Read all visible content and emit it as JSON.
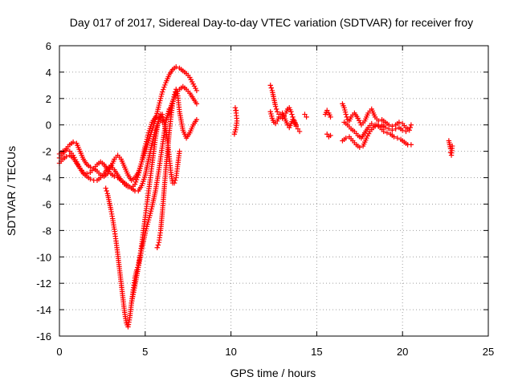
{
  "chart_data": {
    "type": "scatter",
    "title": "Day 017 of 2017, Sidereal Day-to-day VTEC variation (SDTVAR) for receiver froy",
    "xlabel": "GPS time / hours",
    "ylabel": "SDTVAR / TECUs",
    "xlim": [
      0,
      25
    ],
    "ylim": [
      -16,
      6
    ],
    "xticks": [
      0,
      5,
      10,
      15,
      20,
      25
    ],
    "yticks": [
      -16,
      -14,
      -12,
      -10,
      -8,
      -6,
      -4,
      -2,
      0,
      2,
      4,
      6
    ],
    "grid": true,
    "marker": "plus",
    "color": "#ff0000",
    "series": [
      {
        "x": [
          0.0,
          0.2,
          0.4,
          0.6,
          0.8,
          1.0,
          1.2,
          1.4,
          1.6,
          1.8,
          2.0,
          2.2,
          2.4,
          2.6,
          2.8,
          3.0,
          3.2,
          3.4,
          3.6,
          3.8,
          4.0,
          4.2,
          4.4,
          4.6,
          4.8,
          5.0,
          5.2,
          5.4,
          5.6,
          5.8,
          6.0,
          6.2,
          6.4,
          6.6,
          6.8,
          7.0,
          7.2,
          7.4,
          7.6,
          7.8,
          8.0
        ],
        "y": [
          -2.5,
          -2.2,
          -1.8,
          -1.5,
          -1.3,
          -1.4,
          -2.0,
          -2.6,
          -3.0,
          -3.2,
          -3.3,
          -3.5,
          -3.8,
          -3.9,
          -3.7,
          -3.2,
          -2.6,
          -2.3,
          -2.6,
          -3.2,
          -3.8,
          -4.2,
          -4.0,
          -3.6,
          -2.8,
          -2.0,
          -1.2,
          -0.4,
          0.4,
          1.5,
          2.5,
          3.2,
          3.8,
          4.2,
          4.4,
          4.3,
          4.1,
          3.9,
          3.6,
          3.1,
          2.6
        ]
      },
      {
        "x": [
          0.0,
          0.2,
          0.4,
          0.6,
          0.8,
          1.0,
          1.2,
          1.4,
          1.6,
          1.8,
          2.0,
          2.2,
          2.4,
          2.6,
          2.8,
          3.0,
          3.2,
          3.4,
          3.6,
          3.8,
          4.0,
          4.2,
          4.4,
          4.6,
          4.8,
          5.0,
          5.2,
          5.4,
          5.6,
          5.8,
          6.0,
          6.2,
          6.4,
          6.6,
          6.8,
          7.0,
          7.2,
          7.4,
          7.6,
          7.8,
          8.0
        ],
        "y": [
          -2.2,
          -2.0,
          -1.9,
          -2.0,
          -2.3,
          -2.8,
          -3.3,
          -3.7,
          -3.9,
          -4.1,
          -4.2,
          -4.2,
          -4.0,
          -3.7,
          -3.3,
          -3.1,
          -3.4,
          -3.8,
          -4.2,
          -4.5,
          -4.7,
          -4.8,
          -4.5,
          -3.8,
          -2.8,
          -1.6,
          -0.6,
          0.2,
          0.6,
          0.5,
          0.2,
          0.4,
          1.0,
          1.8,
          2.4,
          2.7,
          2.9,
          2.7,
          2.4,
          2.0,
          1.6
        ]
      },
      {
        "x": [
          0.0,
          0.2,
          0.4,
          0.6,
          0.8,
          1.0,
          1.2,
          1.4,
          1.6,
          1.8,
          2.0,
          2.2,
          2.4,
          2.6,
          2.8,
          3.0,
          3.2,
          3.4,
          3.6,
          3.8,
          4.0,
          4.2,
          4.4,
          4.6,
          4.8,
          5.0,
          5.2,
          5.4,
          5.6,
          5.8,
          6.0
        ],
        "y": [
          -2.9,
          -2.6,
          -2.4,
          -2.3,
          -2.5,
          -2.9,
          -3.3,
          -3.6,
          -3.7,
          -3.6,
          -3.3,
          -3.0,
          -2.8,
          -3.0,
          -3.4,
          -3.7,
          -3.9,
          -4.0,
          -4.2,
          -4.4,
          -4.6,
          -4.8,
          -5.0,
          -5.0,
          -4.6,
          -3.8,
          -2.6,
          -1.4,
          -0.4,
          0.4,
          0.8
        ]
      },
      {
        "x": [
          2.7,
          2.8,
          2.9,
          3.0,
          3.1,
          3.2,
          3.3,
          3.4,
          3.5,
          3.6,
          3.7,
          3.8,
          3.9,
          4.0,
          4.1,
          4.2,
          4.3,
          4.4,
          4.5,
          4.6,
          4.7,
          4.8,
          4.9,
          5.0,
          5.1,
          5.2,
          5.3,
          5.4,
          5.5,
          5.6,
          5.7,
          5.8,
          5.9,
          6.0,
          6.1,
          6.2,
          6.3,
          6.4,
          6.5,
          6.6,
          6.7,
          6.8,
          6.9,
          7.0
        ],
        "y": [
          -4.8,
          -5.2,
          -5.8,
          -6.4,
          -7.1,
          -7.9,
          -8.8,
          -9.8,
          -10.9,
          -12.0,
          -13.1,
          -14.2,
          -15.0,
          -15.3,
          -14.6,
          -13.5,
          -12.5,
          -11.6,
          -11.0,
          -10.6,
          -9.9,
          -9.0,
          -8.0,
          -7.0,
          -6.0,
          -5.0,
          -4.0,
          -3.0,
          -2.0,
          -1.0,
          -0.2,
          0.4,
          0.8,
          0.6,
          0.2,
          -0.4,
          -1.2,
          -2.4,
          -3.6,
          -4.4,
          -4.4,
          -4.0,
          -3.0,
          -2.0
        ]
      },
      {
        "x": [
          4.2,
          4.4,
          4.6,
          4.8,
          5.0,
          5.2,
          5.4,
          5.6,
          5.8,
          6.0,
          6.2,
          6.4
        ],
        "y": [
          -13.5,
          -12.2,
          -10.8,
          -9.4,
          -8.2,
          -7.2,
          -6.2,
          -5.0,
          -3.4,
          -1.6,
          0.2,
          1.2
        ]
      },
      {
        "x": [
          5.7,
          5.8,
          5.9,
          6.0,
          6.1,
          6.2,
          6.3,
          6.4,
          6.5,
          6.6,
          6.7,
          6.8,
          6.9,
          7.0,
          7.2,
          7.4,
          7.6,
          7.8,
          8.0
        ],
        "y": [
          -9.3,
          -8.9,
          -8.0,
          -6.6,
          -5.0,
          -3.4,
          -2.0,
          -0.6,
          0.6,
          1.6,
          2.3,
          2.7,
          2.2,
          1.0,
          -0.4,
          -1.0,
          -0.6,
          0.0,
          0.4
        ]
      },
      {
        "x": [
          10.2,
          10.3,
          10.35,
          10.3,
          10.25,
          10.3
        ],
        "y": [
          -0.7,
          -0.2,
          0.3,
          0.9,
          1.3,
          1.1
        ]
      },
      {
        "x": [
          12.3,
          12.4,
          12.5,
          12.6,
          12.7,
          12.8,
          12.9,
          13.0,
          13.1,
          13.2,
          13.3,
          13.4,
          13.5,
          13.6,
          13.7,
          13.8,
          13.9,
          14.0
        ],
        "y": [
          3.0,
          2.6,
          2.0,
          1.4,
          1.0,
          0.8,
          0.6,
          0.5,
          0.7,
          0.9,
          1.2,
          1.3,
          1.0,
          0.6,
          0.2,
          -0.1,
          -0.3,
          -0.5
        ]
      },
      {
        "x": [
          12.3,
          12.4,
          12.5,
          12.6,
          12.7,
          12.8,
          12.9,
          13.0,
          13.1,
          13.2,
          13.3,
          13.4,
          13.5,
          13.6,
          13.7,
          13.8
        ],
        "y": [
          1.0,
          0.5,
          0.2,
          0.1,
          0.3,
          0.6,
          0.8,
          0.9,
          0.6,
          0.3,
          0.0,
          -0.2,
          0.1,
          0.4,
          0.3,
          0.0
        ]
      },
      {
        "x": [
          14.3,
          14.4
        ],
        "y": [
          0.8,
          0.6
        ]
      },
      {
        "x": [
          15.5,
          15.6,
          15.7,
          15.8
        ],
        "y": [
          0.8,
          1.1,
          0.9,
          0.6
        ]
      },
      {
        "x": [
          15.6,
          15.7,
          15.8
        ],
        "y": [
          -0.7,
          -0.9,
          -0.8
        ]
      },
      {
        "x": [
          16.5,
          16.6,
          16.7,
          16.8,
          16.9,
          17.0,
          17.2,
          17.4,
          17.6,
          17.8,
          18.0,
          18.2,
          18.4,
          18.6,
          18.8,
          19.0,
          19.2,
          19.4,
          19.6,
          19.8,
          20.0,
          20.2,
          20.4,
          20.5
        ],
        "y": [
          1.6,
          1.3,
          0.8,
          0.4,
          0.3,
          0.6,
          0.9,
          0.5,
          0.0,
          0.3,
          0.9,
          1.2,
          0.6,
          0.3,
          0.4,
          0.2,
          0.0,
          -0.1,
          0.0,
          0.2,
          0.1,
          -0.2,
          -0.4,
          0.0
        ]
      },
      {
        "x": [
          16.5,
          16.7,
          16.9,
          17.1,
          17.3,
          17.5,
          17.7,
          17.9,
          18.1,
          18.3,
          18.5,
          18.7,
          18.9,
          19.1,
          19.3,
          19.5,
          19.7,
          19.9,
          20.1,
          20.3,
          20.5
        ],
        "y": [
          -1.2,
          -1.0,
          -0.9,
          -1.2,
          -1.5,
          -1.7,
          -1.6,
          -1.0,
          -0.5,
          -0.2,
          0.0,
          -0.2,
          -0.5,
          -0.6,
          -0.7,
          -0.9,
          -1.0,
          -1.1,
          -1.3,
          -1.5,
          -1.5
        ]
      },
      {
        "x": [
          16.6,
          16.8,
          17.0,
          17.2,
          17.4,
          17.6,
          17.8,
          18.0,
          18.2,
          18.4,
          18.6,
          18.8,
          19.0,
          19.2,
          19.4,
          19.6,
          19.8,
          20.0,
          20.2
        ],
        "y": [
          0.2,
          0.0,
          -0.3,
          -0.5,
          -0.8,
          -1.0,
          -0.6,
          -0.2,
          0.1,
          0.0,
          -0.1,
          0.0,
          -0.2,
          -0.3,
          -0.4,
          -0.3,
          -0.2,
          -0.4,
          -0.5
        ]
      },
      {
        "x": [
          22.7,
          22.75,
          22.8,
          22.8,
          22.85,
          22.9
        ],
        "y": [
          -1.2,
          -1.5,
          -1.8,
          -2.1,
          -2.3,
          -1.6
        ]
      }
    ]
  }
}
